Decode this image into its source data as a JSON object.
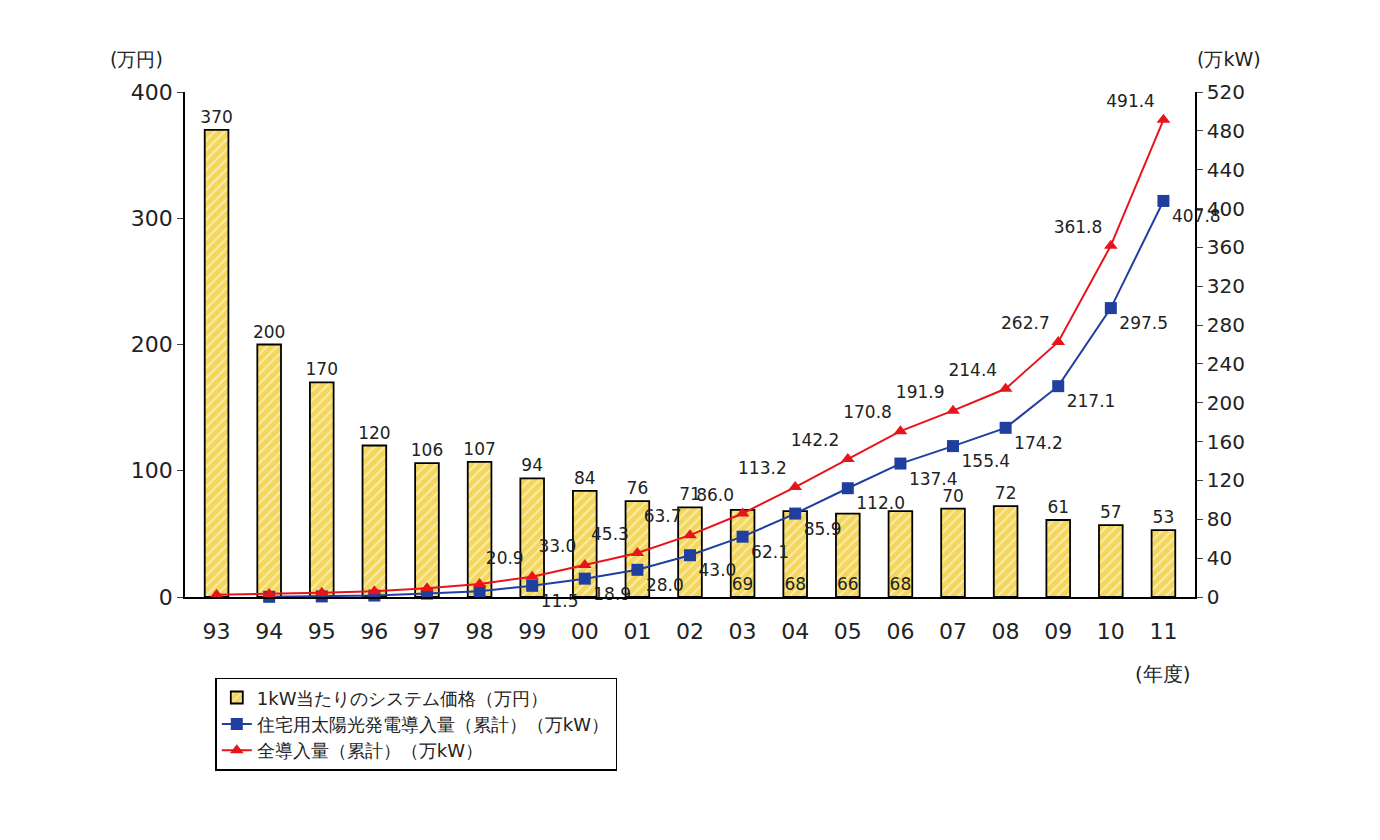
{
  "chart_data": {
    "type": "bar",
    "categories": [
      "93",
      "94",
      "95",
      "96",
      "97",
      "98",
      "99",
      "00",
      "01",
      "02",
      "03",
      "04",
      "05",
      "06",
      "07",
      "08",
      "09",
      "10",
      "11"
    ],
    "xlabel": "(年度)",
    "ylabel": "(万円)",
    "y2label": "(万kW)",
    "ylim": [
      0,
      400
    ],
    "yticks": [
      0,
      100,
      200,
      300,
      400
    ],
    "y2lim": [
      0,
      520
    ],
    "y2ticks": [
      0,
      40,
      80,
      120,
      160,
      200,
      240,
      280,
      320,
      360,
      400,
      440,
      480,
      520
    ],
    "grid": false,
    "legend": "bottom",
    "data_labels": true,
    "series": [
      {
        "name": "1kW当たりのシステム価格（万円）",
        "type": "bar",
        "color": "#f3d65a",
        "values": [
          370,
          200,
          170,
          120,
          106,
          107,
          94,
          84,
          76,
          71,
          69,
          68,
          66,
          68,
          70,
          72,
          61,
          57,
          53
        ]
      },
      {
        "name": "住宅用太陽光発電導入量（累計）（万kW）",
        "type": "line",
        "axis": "y2",
        "color": "#1f3f9f",
        "marker": "square",
        "values": [
          null,
          0.2,
          0.6,
          1.5,
          3.5,
          6.0,
          11.5,
          18.9,
          28.0,
          43.0,
          62.1,
          85.9,
          112.0,
          137.4,
          155.4,
          174.2,
          217.1,
          297.5,
          407.8
        ],
        "value_labels": [
          null,
          null,
          null,
          null,
          null,
          null,
          "11.5",
          "18.9",
          "28.0",
          "43.0",
          "62.1",
          "85.9",
          "112.0",
          "137.4",
          "155.4",
          "174.2",
          "217.1",
          "297.5",
          "407.8"
        ]
      },
      {
        "name": "全導入量（累計）（万kW）",
        "type": "line",
        "axis": "y2",
        "color": "#e8141b",
        "marker": "triangle",
        "values": [
          2.4,
          3.1,
          4.3,
          6.0,
          9.1,
          13.3,
          20.9,
          33.0,
          45.3,
          63.7,
          86.0,
          113.2,
          142.2,
          170.8,
          191.9,
          214.4,
          262.7,
          361.8,
          491.4
        ],
        "value_labels": [
          null,
          null,
          null,
          null,
          null,
          null,
          "20.9",
          "33.0",
          "45.3",
          "63.7",
          "86.0",
          "113.2",
          "142.2",
          "170.8",
          "191.9",
          "214.4",
          "262.7",
          "361.8",
          "491.4"
        ]
      }
    ]
  }
}
